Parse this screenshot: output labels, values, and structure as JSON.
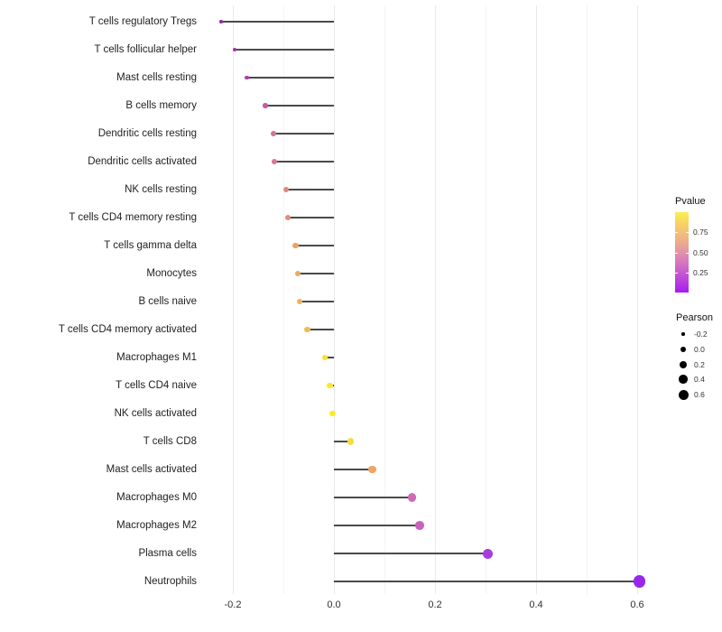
{
  "chart_data": {
    "type": "lollipop",
    "title": "",
    "xlabel": "",
    "ylabel": "",
    "xlim": [
      -0.25,
      0.63
    ],
    "grid": "vertical-only",
    "x_axis": {
      "ticks": [
        {
          "v": -0.2,
          "label": "-0.2"
        },
        {
          "v": 0.0,
          "label": "0.0"
        },
        {
          "v": 0.2,
          "label": "0.2"
        },
        {
          "v": 0.4,
          "label": "0.4"
        },
        {
          "v": 0.6,
          "label": "0.6"
        }
      ],
      "minor_ticks": [
        -0.1,
        0.1,
        0.3,
        0.5
      ]
    },
    "points": [
      {
        "label": "T cells regulatory  Tregs",
        "pearson": -0.223,
        "color": "#8F2D9E",
        "size": 3.6
      },
      {
        "label": "T cells follicular helper",
        "pearson": -0.196,
        "color": "#A335A6",
        "size": 4.2
      },
      {
        "label": "Mast cells resting",
        "pearson": -0.172,
        "color": "#AB3FA9",
        "size": 4.8
      },
      {
        "label": "B cells memory",
        "pearson": -0.136,
        "color": "#C55C9F",
        "size": 5.4
      },
      {
        "label": "Dendritic cells resting",
        "pearson": -0.12,
        "color": "#D37791",
        "size": 5.8
      },
      {
        "label": "Dendritic cells activated",
        "pearson": -0.118,
        "color": "#D57990",
        "size": 5.8
      },
      {
        "label": "NK cells resting",
        "pearson": -0.095,
        "color": "#DE8A7B",
        "size": 6.0
      },
      {
        "label": "T cells CD4 memory resting",
        "pearson": -0.091,
        "color": "#E08D79",
        "size": 6.0
      },
      {
        "label": "T cells gamma delta",
        "pearson": -0.076,
        "color": "#E9A465",
        "size": 6.2
      },
      {
        "label": "Monocytes",
        "pearson": -0.071,
        "color": "#ECAA60",
        "size": 6.2
      },
      {
        "label": "B cells naive",
        "pearson": -0.068,
        "color": "#EEB05C",
        "size": 6.2
      },
      {
        "label": "T cells CD4 memory activated",
        "pearson": -0.053,
        "color": "#F2BC52",
        "size": 6.4
      },
      {
        "label": "Macrophages M1",
        "pearson": -0.018,
        "color": "#FAE32C",
        "size": 6.8
      },
      {
        "label": "T cells CD4 naive",
        "pearson": -0.008,
        "color": "#FBE926",
        "size": 6.8
      },
      {
        "label": "NK cells activated",
        "pearson": -0.003,
        "color": "#FBEB24",
        "size": 6.8
      },
      {
        "label": "T cells CD8",
        "pearson": 0.033,
        "color": "#F6DC3E",
        "size": 7.4
      },
      {
        "label": "Mast cells activated",
        "pearson": 0.076,
        "color": "#EFA468",
        "size": 8.6
      },
      {
        "label": "Macrophages M0",
        "pearson": 0.154,
        "color": "#CF6BB6",
        "size": 9.4
      },
      {
        "label": "Macrophages M2",
        "pearson": 0.17,
        "color": "#CB61BE",
        "size": 9.6
      },
      {
        "label": "Plasma cells",
        "pearson": 0.305,
        "color": "#A93BDD",
        "size": 11.0
      },
      {
        "label": "Neutrophils",
        "pearson": 0.604,
        "color": "#9927E9",
        "size": 13.4
      }
    ],
    "legend": {
      "position": "right",
      "pvalue": {
        "title": "Pvalue",
        "gradient_bottom_to_top": [
          "#A71BF2 0%",
          "#B53BE0 12%",
          "#C75ACF 25%",
          "#D678BE 38%",
          "#E292A7 50%",
          "#EDAA8E 62%",
          "#F4C076 75%",
          "#F8D562 87%",
          "#FAF04E 100%"
        ],
        "range": [
          0,
          1
        ],
        "ticks": [
          {
            "v": 0.75,
            "label": "0.75"
          },
          {
            "v": 0.5,
            "label": "0.50"
          },
          {
            "v": 0.25,
            "label": "0.25"
          }
        ]
      },
      "pearson": {
        "title": "Pearson",
        "keys": [
          {
            "label": "-0.2",
            "d": 3.5
          },
          {
            "label": "0.0",
            "d": 6.5
          },
          {
            "label": "0.2",
            "d": 8.0
          },
          {
            "label": "0.4",
            "d": 9.5
          },
          {
            "label": "0.6",
            "d": 11.0
          }
        ]
      }
    },
    "colors": {
      "stem": "#4a4a4a",
      "grid_major": "#e9e9e9",
      "grid_minor": "#f4f4f4",
      "background": "#ffffff"
    }
  }
}
